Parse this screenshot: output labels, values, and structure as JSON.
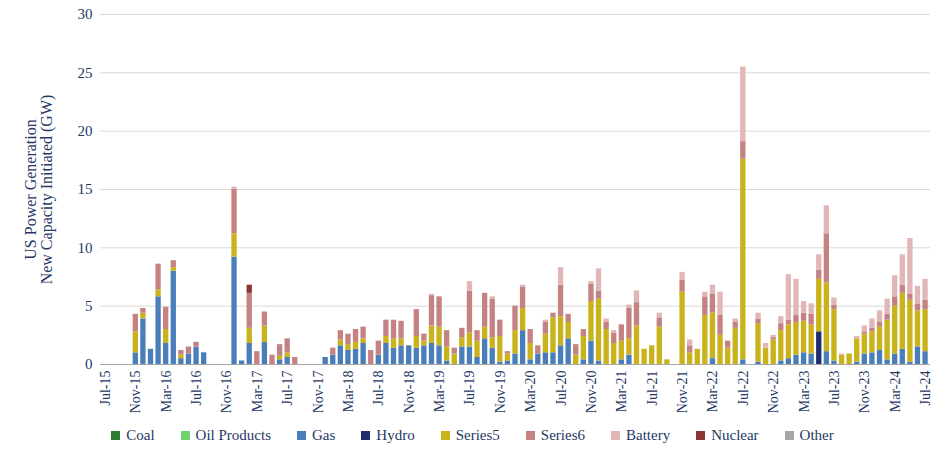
{
  "chart_data": {
    "type": "bar",
    "stacked": true,
    "grid": true,
    "legend": "bottom",
    "ylabel": "US Power Generation\nNew Capacity Initiated (GW)",
    "ylim": [
      0,
      30
    ],
    "yticks": [
      0,
      5,
      10,
      15,
      20,
      25,
      30
    ],
    "categories": [
      "Jul-15",
      null,
      null,
      null,
      "Nov-15",
      null,
      null,
      null,
      "Mar-16",
      null,
      null,
      null,
      "Jul-16",
      null,
      null,
      null,
      "Nov-16",
      null,
      null,
      null,
      "Mar-17",
      null,
      null,
      null,
      "Jul-17",
      null,
      null,
      null,
      "Nov-17",
      null,
      null,
      null,
      "Mar-18",
      null,
      null,
      null,
      "Jul-18",
      null,
      null,
      null,
      "Nov-18",
      null,
      null,
      null,
      "Mar-19",
      null,
      null,
      null,
      "Jul-19",
      null,
      null,
      null,
      "Nov-19",
      null,
      null,
      null,
      "Mar-20",
      null,
      null,
      null,
      "Jul-20",
      null,
      null,
      null,
      "Nov-20",
      null,
      null,
      null,
      "Mar-21",
      null,
      null,
      null,
      "Jul-21",
      null,
      null,
      null,
      "Nov-21",
      null,
      null,
      null,
      "Mar-22",
      null,
      null,
      null,
      "Jul-22",
      null,
      null,
      null,
      "Nov-22",
      null,
      null,
      null,
      "Mar-23",
      null,
      null,
      null,
      "Jul-23",
      null,
      null,
      null,
      "Nov-23",
      null,
      null,
      null,
      "Mar-24",
      null,
      null,
      null,
      "Jul-24"
    ],
    "series": [
      {
        "name": "Coal",
        "color": "#2e7d32",
        "values": [
          0,
          0,
          0,
          0,
          0,
          0,
          0,
          0,
          0,
          0,
          0,
          0,
          0,
          0,
          0,
          0,
          0,
          0,
          0,
          0,
          0,
          0,
          0,
          0,
          0,
          0,
          0,
          0,
          0,
          0,
          0,
          0,
          0,
          0,
          0,
          0,
          0,
          0,
          0,
          0,
          0,
          0,
          0,
          0,
          0,
          0,
          0,
          0,
          0,
          0,
          0,
          0,
          0,
          0,
          0,
          0,
          0,
          0,
          0,
          0,
          0,
          0,
          0,
          0,
          0,
          0,
          0,
          0,
          0,
          0,
          0,
          0,
          0,
          0,
          0,
          0,
          0,
          0,
          0,
          0,
          0,
          0,
          0,
          0,
          0,
          0,
          0,
          0,
          0,
          0,
          0,
          0,
          0,
          0,
          0,
          0,
          0,
          0,
          0,
          0,
          0,
          0,
          0,
          0,
          0,
          0,
          0,
          0,
          0
        ]
      },
      {
        "name": "Oil Products",
        "color": "#6fd36f",
        "values": [
          0,
          0,
          0,
          0,
          0,
          0,
          0,
          0,
          0,
          0,
          0,
          0,
          0,
          0,
          0,
          0,
          0,
          0,
          0,
          0,
          0,
          0,
          0,
          0,
          0,
          0,
          0,
          0,
          0,
          0,
          0,
          0,
          0,
          0,
          0,
          0,
          0,
          0,
          0,
          0,
          0,
          0,
          0,
          0,
          0,
          0,
          0,
          0,
          0,
          0,
          0,
          0,
          0,
          0,
          0,
          0,
          0,
          0,
          0,
          0,
          0,
          0,
          0,
          0,
          0,
          0,
          0,
          0,
          0,
          0,
          0,
          0,
          0,
          0,
          0,
          0,
          0,
          0,
          0,
          0,
          0,
          0,
          0,
          0,
          0,
          0,
          0,
          0,
          0,
          0,
          0,
          0,
          0,
          0,
          0,
          0,
          0,
          0,
          0,
          0,
          0,
          0,
          0,
          0,
          0,
          0,
          0,
          0,
          0
        ]
      },
      {
        "name": "Gas",
        "color": "#4a7ebb",
        "values": [
          0,
          0,
          0,
          0,
          1.0,
          3.9,
          1.3,
          5.8,
          1.8,
          8.0,
          0.5,
          0.9,
          1.5,
          1.0,
          0,
          0,
          0,
          9.2,
          0.3,
          1.8,
          0,
          1.9,
          0,
          0.4,
          0.6,
          0,
          0,
          0,
          0,
          0.6,
          0.8,
          1.6,
          1.2,
          1.3,
          1.8,
          0,
          0.8,
          1.8,
          1.4,
          1.6,
          1.6,
          1.4,
          1.6,
          1.8,
          1.6,
          0.3,
          0,
          1.5,
          1.5,
          0.6,
          2.2,
          1.4,
          0.2,
          0.3,
          0.9,
          2.9,
          0.4,
          0.9,
          1.0,
          1.0,
          1.6,
          2.2,
          0,
          0.4,
          2.0,
          0.3,
          0,
          0,
          0.4,
          0.8,
          0,
          0,
          0,
          0,
          0,
          0,
          0,
          0,
          0,
          0,
          0.5,
          0,
          0,
          0,
          0.4,
          0,
          0.2,
          0,
          0,
          0.3,
          0.5,
          0.8,
          1.0,
          0.9,
          0,
          1.1,
          0.3,
          0,
          0,
          0.2,
          0.9,
          1.0,
          1.2,
          0.4,
          0.9,
          1.3,
          0.2,
          1.5,
          1.1
        ]
      },
      {
        "name": "Hydro",
        "color": "#1f2d6b",
        "values": [
          0,
          0,
          0,
          0,
          0,
          0,
          0,
          0,
          0,
          0,
          0,
          0,
          0,
          0,
          0,
          0,
          0,
          0,
          0,
          0,
          0,
          0,
          0,
          0,
          0,
          0,
          0,
          0,
          0,
          0,
          0,
          0,
          0,
          0,
          0,
          0,
          0,
          0,
          0,
          0,
          0,
          0,
          0,
          0,
          0,
          0,
          0,
          0,
          0,
          0,
          0,
          0,
          0,
          0,
          0,
          0,
          0,
          0,
          0,
          0,
          0,
          0,
          0,
          0,
          0,
          0,
          0,
          0,
          0,
          0,
          0,
          0,
          0,
          0,
          0,
          0,
          0,
          0,
          0,
          0,
          0,
          0,
          0,
          0,
          0,
          0,
          0,
          0,
          0,
          0,
          0,
          0,
          0,
          0,
          2.8,
          0,
          0,
          0,
          0,
          0,
          0,
          0,
          0,
          0,
          0,
          0,
          0,
          0,
          0
        ]
      },
      {
        "name": "Series5",
        "color": "#c9b21a",
        "values": [
          0,
          0,
          0,
          0,
          1.8,
          0.5,
          0,
          0.6,
          1.2,
          0.3,
          0.3,
          0,
          0,
          0,
          0,
          0,
          0,
          2.0,
          0,
          1.3,
          0,
          1.4,
          0,
          0.3,
          0.4,
          0,
          0,
          0,
          0,
          0,
          0,
          0.5,
          0.5,
          0.6,
          0.4,
          0,
          0,
          0.6,
          0.8,
          0.6,
          0,
          1.0,
          0.4,
          1.5,
          1.6,
          1.2,
          0.9,
          0.8,
          1.2,
          1.4,
          1.0,
          0.9,
          2.2,
          0.6,
          2.0,
          1.9,
          1.4,
          0,
          1.6,
          3.0,
          2.5,
          1.4,
          0.8,
          2.0,
          3.4,
          5.3,
          3.0,
          1.8,
          1.6,
          1.4,
          3.3,
          1.3,
          1.6,
          3.2,
          0.4,
          0,
          6.2,
          1.0,
          1.3,
          4.2,
          3.9,
          2.5,
          1.4,
          3.1,
          17.2,
          0,
          3.3,
          1.4,
          2.1,
          2.6,
          2.9,
          2.8,
          2.7,
          2.5,
          4.5,
          5.9,
          4.4,
          0.8,
          0.9,
          2.0,
          1.7,
          1.8,
          2.0,
          3.4,
          4.1,
          4.8,
          5.3,
          3.1,
          3.6
        ]
      },
      {
        "name": "Series6",
        "color": "#c48282",
        "values": [
          0,
          0,
          0,
          0,
          1.5,
          0.4,
          0,
          2.2,
          1.9,
          0.6,
          0.4,
          0.6,
          0.4,
          0,
          0,
          0,
          0,
          3.8,
          0,
          3.0,
          1.1,
          1.2,
          0.8,
          1.0,
          1.2,
          0.6,
          0,
          0,
          0,
          0,
          0.6,
          0.8,
          0.9,
          1.1,
          1.0,
          1.2,
          1.2,
          1.4,
          1.6,
          1.5,
          0,
          2.3,
          0.6,
          2.6,
          2.6,
          1.4,
          0.5,
          0.8,
          3.6,
          0.9,
          2.9,
          3.3,
          1.4,
          0.2,
          2.1,
          1.8,
          1.2,
          0.7,
          1.0,
          0.4,
          2.7,
          0.7,
          0.9,
          0.6,
          1.5,
          0.7,
          0.6,
          0.9,
          1.4,
          2.6,
          2.0,
          0,
          0,
          0.8,
          0,
          0,
          1.0,
          0.6,
          0,
          1.6,
          1.6,
          1.7,
          0.6,
          0.5,
          1.5,
          0,
          0.4,
          0,
          0.2,
          0.6,
          0.4,
          0.6,
          0.7,
          0.9,
          0.8,
          4.2,
          0.4,
          0,
          0,
          0,
          0.2,
          0.3,
          0.4,
          0.5,
          0.8,
          0.7,
          0.5,
          0.6,
          0.8
        ]
      },
      {
        "name": "Battery",
        "color": "#e2b6b6",
        "values": [
          0,
          0,
          0,
          0,
          0,
          0,
          0,
          0,
          0,
          0,
          0,
          0,
          0,
          0,
          0,
          0,
          0,
          0.2,
          0,
          0,
          0,
          0,
          0,
          0,
          0,
          0,
          0,
          0,
          0,
          0,
          0,
          0,
          0,
          0,
          0,
          0,
          0,
          0,
          0,
          0,
          0,
          0,
          0,
          0.1,
          0,
          0,
          0,
          0,
          0.8,
          0,
          0,
          0.2,
          0,
          0,
          0,
          0.2,
          0,
          0,
          0.2,
          0,
          1.5,
          0,
          0,
          0,
          0.2,
          1.9,
          0.3,
          0.2,
          0,
          0.3,
          1.0,
          0,
          0,
          0.4,
          0,
          0,
          0.7,
          0.5,
          0,
          0.4,
          0.8,
          2.0,
          0,
          0.3,
          6.4,
          0,
          0.5,
          0.4,
          0.2,
          0.6,
          3.9,
          3.1,
          1.0,
          0.9,
          1.3,
          2.4,
          0.6,
          0.1,
          0,
          0.2,
          0.5,
          0.8,
          1.0,
          1.3,
          1.8,
          2.6,
          4.8,
          1.5,
          1.8
        ]
      },
      {
        "name": "Nuclear",
        "color": "#8b3535",
        "values": [
          0,
          0,
          0,
          0,
          0,
          0,
          0,
          0,
          0,
          0,
          0,
          0,
          0,
          0,
          0,
          0,
          0,
          0,
          0,
          0.7,
          0,
          0,
          0,
          0,
          0,
          0,
          0,
          0,
          0,
          0,
          0,
          0,
          0,
          0,
          0,
          0,
          0,
          0,
          0,
          0,
          0,
          0,
          0,
          0,
          0,
          0,
          0,
          0,
          0,
          0,
          0,
          0,
          0,
          0,
          0,
          0,
          0,
          0,
          0,
          0,
          0,
          0,
          0,
          0,
          0,
          0,
          0,
          0,
          0,
          0,
          0,
          0,
          0,
          0,
          0,
          0,
          0,
          0,
          0,
          0,
          0,
          0,
          0,
          0,
          0,
          0,
          0,
          0,
          0,
          0,
          0,
          0,
          0,
          0,
          0,
          0,
          0,
          0,
          0,
          0,
          0,
          0,
          0,
          0,
          0,
          0,
          0,
          0,
          0
        ]
      },
      {
        "name": "Other",
        "color": "#a6a6a6",
        "values": [
          0,
          0,
          0,
          0,
          0,
          0,
          0,
          0,
          0,
          0,
          0,
          0,
          0,
          0,
          0,
          0,
          0,
          0,
          0,
          0,
          0,
          0,
          0,
          0,
          0,
          0,
          0,
          0,
          0,
          0,
          0,
          0,
          0,
          0,
          0,
          0,
          0,
          0,
          0,
          0,
          0,
          0,
          0,
          0,
          0,
          0,
          0,
          0,
          0,
          0,
          0,
          0,
          0,
          0,
          0,
          0,
          0,
          0,
          0,
          0,
          0,
          0,
          0,
          0,
          0,
          0,
          0,
          0,
          0,
          0,
          0,
          0,
          0,
          0,
          0,
          0,
          0,
          0,
          0,
          0,
          0,
          0,
          0,
          0,
          0,
          0,
          0,
          0,
          0,
          0,
          0,
          0,
          0,
          0,
          0,
          0,
          0,
          0,
          0,
          0,
          0,
          0,
          0,
          0,
          0,
          0,
          0,
          0,
          0
        ]
      }
    ]
  }
}
